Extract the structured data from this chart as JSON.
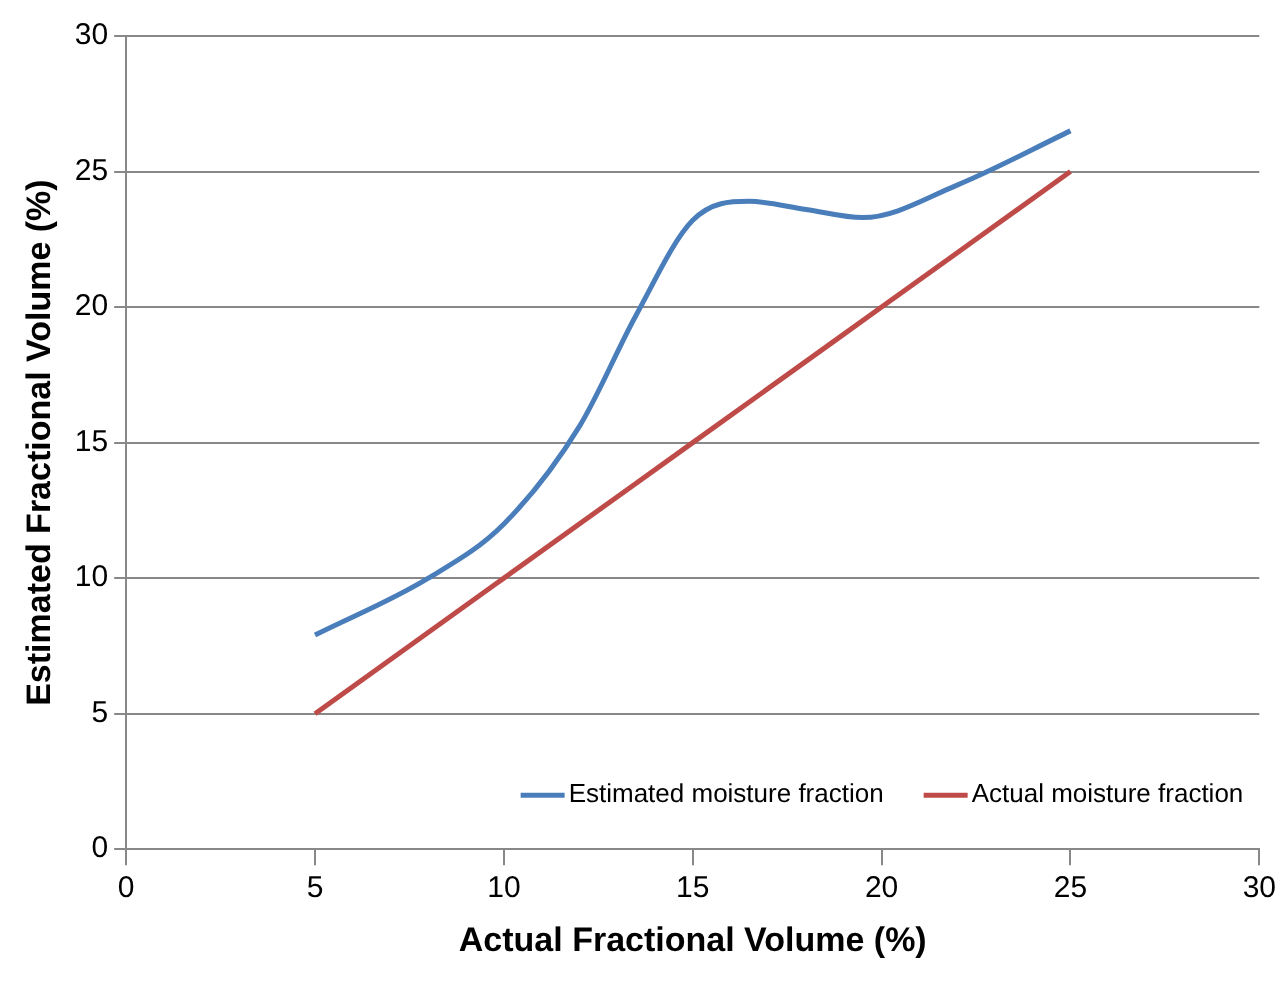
{
  "chart_data": {
    "type": "line",
    "xlabel": "Actual Fractional Volume (%)",
    "ylabel": "Estimated Fractional Volume (%)",
    "xlim": [
      0,
      30
    ],
    "xticks": [
      0,
      5,
      10,
      15,
      20,
      25,
      30
    ],
    "ylim": [
      0,
      30
    ],
    "yticks": [
      0,
      5,
      10,
      15,
      20,
      25,
      30
    ],
    "grid": "y",
    "legend": "bottom right",
    "marker": "none",
    "series": [
      {
        "name": "Estimated moisture fraction",
        "color": "#4a7ebb",
        "x": [
          5,
          8,
          10,
          12,
          13.5,
          15,
          16.5,
          18,
          19.5,
          22,
          25
        ],
        "values": [
          7.9,
          10,
          12,
          15.6,
          19.7,
          23.2,
          23.9,
          23.6,
          23.3,
          24.5,
          26.5
        ]
      },
      {
        "name": "Actual moisture fraction",
        "color": "#be4b48",
        "x": [
          5,
          10,
          15,
          20,
          25
        ],
        "values": [
          5,
          10,
          15,
          20,
          25
        ]
      }
    ]
  }
}
